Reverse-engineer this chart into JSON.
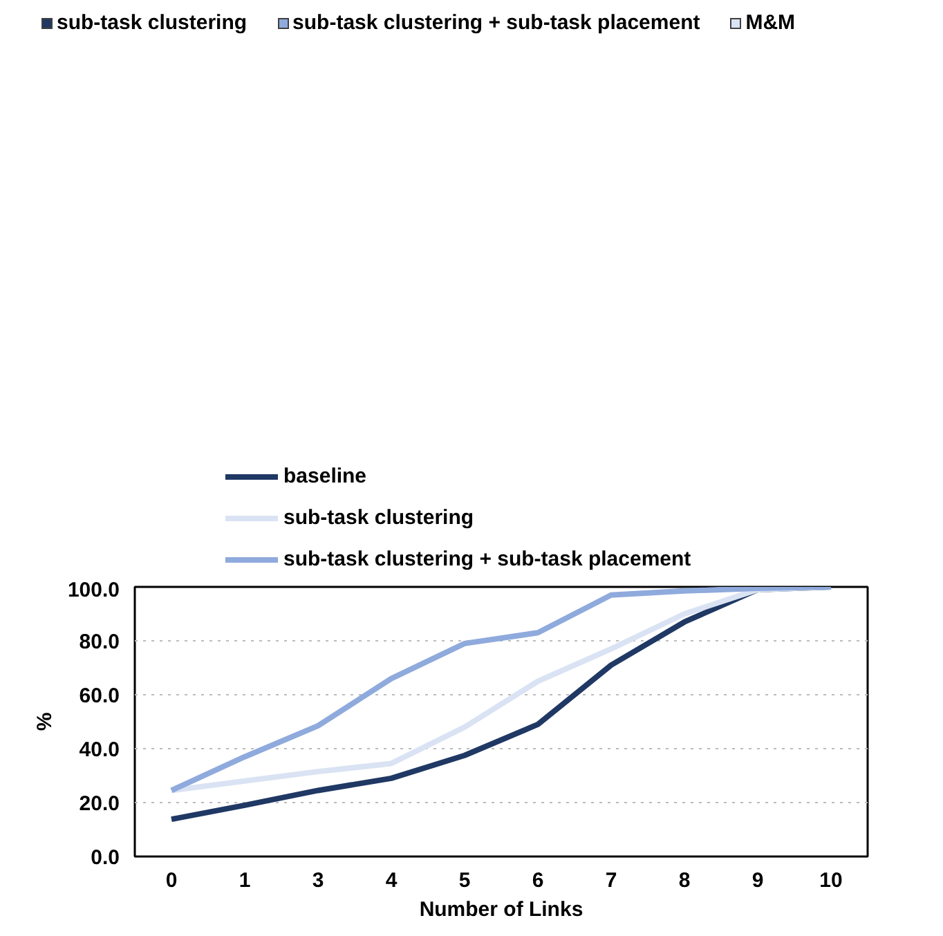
{
  "chart_data": [
    {
      "type": "other",
      "categories": [
        "sub-task clustering",
        "sub-task clustering + sub-task placement",
        "M&M"
      ],
      "colors": [
        "#1f3864",
        "#8faadc",
        "#dae3f3"
      ]
    },
    {
      "type": "line",
      "categories": [
        "0",
        "1",
        "3",
        "4",
        "5",
        "6",
        "7",
        "8",
        "9",
        "10"
      ],
      "xlabel": "Number of Links",
      "ylabel": "%",
      "ylim": [
        0,
        100
      ],
      "yticks": [
        {
          "value": 0,
          "label": "0.0"
        },
        {
          "value": 20,
          "label": "20.0"
        },
        {
          "value": 40,
          "label": "40.0"
        },
        {
          "value": 60,
          "label": "60.0"
        },
        {
          "value": 80,
          "label": "80.0"
        },
        {
          "value": 100,
          "label": "100.0"
        }
      ],
      "grid": "y",
      "legend": "top",
      "marker": "none",
      "line_style": "solid",
      "series": [
        {
          "name": "baseline",
          "color": "#1f3864",
          "values": [
            13.8,
            19,
            24.5,
            29,
            37.5,
            49,
            71,
            87,
            99,
            100
          ]
        },
        {
          "name": "sub-task clustering",
          "color": "#dae3f3",
          "values": [
            24.5,
            28,
            31.5,
            34.5,
            48,
            65,
            77,
            90,
            99,
            100
          ]
        },
        {
          "name": "sub-task clustering + sub-task placement",
          "color": "#8faadc",
          "values": [
            24.5,
            37,
            48.5,
            66,
            79,
            83,
            97,
            98.5,
            99.5,
            100
          ]
        }
      ]
    }
  ]
}
